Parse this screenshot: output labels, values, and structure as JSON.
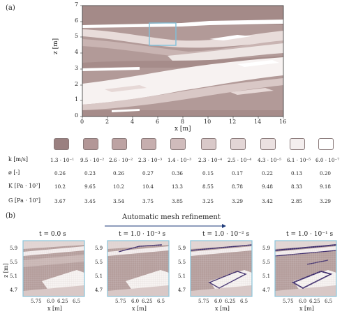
{
  "panel_a": {
    "label": "(a)",
    "xlabel": "x [m]",
    "ylabel": "z [m]",
    "x_ticks": [
      "0",
      "2",
      "4",
      "6",
      "8",
      "10",
      "12",
      "14",
      "16"
    ],
    "y_ticks": [
      "0",
      "1",
      "2",
      "3",
      "4",
      "5",
      "6",
      "7"
    ],
    "xlim": [
      0,
      16
    ],
    "ylim": [
      0,
      7
    ],
    "box_highlight_color": "#7fbfd9"
  },
  "legend_table": {
    "swatch_colors": [
      "#9a8080",
      "#b39797",
      "#bda3a3",
      "#c6aeae",
      "#d0bcbc",
      "#d9c9c9",
      "#e3d6d6",
      "#ebe1e1",
      "#f4eeee",
      "#ffffff"
    ],
    "rows": [
      {
        "label": "k [m/s]",
        "values": [
          "1.3 · 10⁻¹",
          "9.5 · 10⁻²",
          "2.6 · 10⁻²",
          "2.3 · 10⁻³",
          "1.4 · 10⁻³",
          "2.3 · 10⁻⁴",
          "2.5 · 10⁻⁴",
          "4.3 · 10⁻⁵",
          "6.1 · 10⁻⁵",
          "6.0 · 10⁻⁷"
        ]
      },
      {
        "label": "ø [-]",
        "values": [
          "0.26",
          "0.23",
          "0.26",
          "0.27",
          "0.36",
          "0.15",
          "0.17",
          "0.22",
          "0.13",
          "0.20"
        ]
      },
      {
        "label": "K  [Pa · 10⁷]",
        "values": [
          "10.2",
          "9.65",
          "10.2",
          "10.4",
          "13.3",
          "8.55",
          "8.78",
          "9.48",
          "8.33",
          "9.18"
        ]
      },
      {
        "label": "G  [Pa · 10⁷]",
        "values": [
          "3.67",
          "3.45",
          "3.54",
          "3.75",
          "3.85",
          "3.25",
          "3.29",
          "3.42",
          "2.85",
          "3.29"
        ]
      }
    ]
  },
  "panel_b": {
    "label": "(b)",
    "arrow_label": "Automatic mesh refinement",
    "ylabel": "z [m]",
    "xlabel": "x [m]",
    "x_ticks": [
      "5.75",
      "6.0",
      "6.25",
      "6.5"
    ],
    "y_ticks": [
      "5.9",
      "5.5",
      "5.1",
      "4.7"
    ],
    "subplots": [
      {
        "title": "t = 0.0  s"
      },
      {
        "title": "t = 1.0 · 10⁻³ s"
      },
      {
        "title": "t = 1.0 · 10⁻² s"
      },
      {
        "title": "t = 1.0 · 10⁻¹ s"
      }
    ],
    "refinement_color": "#3b2a6b",
    "frame_color": "#8ac6dc"
  }
}
